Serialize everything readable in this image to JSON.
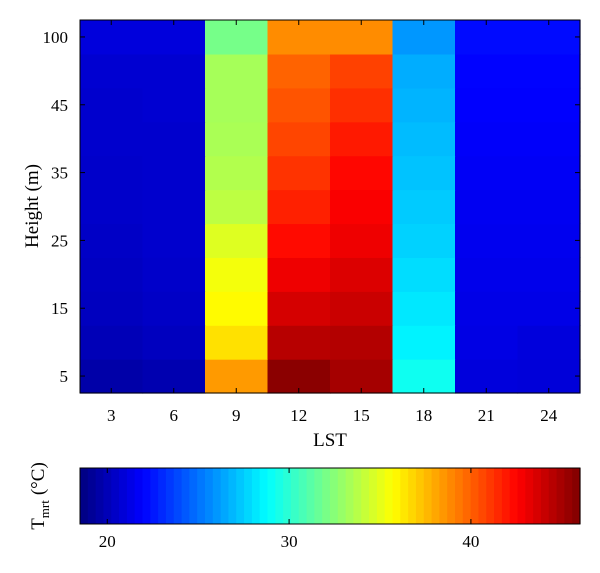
{
  "chart_data": {
    "type": "heatmap",
    "title": "",
    "xlabel": "LST",
    "ylabel": "Height (m)",
    "x": [
      3,
      6,
      9,
      12,
      15,
      18,
      21,
      24
    ],
    "x_tick_labels": [
      "3",
      "6",
      "9",
      "12",
      "15",
      "18",
      "21",
      "24"
    ],
    "y_tick_labels": [
      "5",
      "15",
      "25",
      "35",
      "45",
      "100"
    ],
    "y_tick_rows": [
      0,
      2,
      4,
      6,
      8,
      10
    ],
    "row_count": 11,
    "colorbar": {
      "label_main": "T",
      "label_sub": "mrt",
      "label_unit": "(°C)",
      "colormap": "jet",
      "range": [
        18.5,
        46.0
      ],
      "ticks": [
        20,
        30,
        40
      ],
      "tick_labels": [
        "20",
        "30",
        "40"
      ]
    },
    "values_by_row_from_bottom": [
      [
        19.6,
        19.8,
        38.4,
        45.7,
        45.0,
        29.2,
        21.0,
        20.9
      ],
      [
        20.0,
        20.2,
        36.5,
        44.5,
        44.6,
        28.5,
        21.2,
        21.0
      ],
      [
        20.2,
        20.4,
        35.8,
        43.7,
        44.0,
        28.2,
        21.3,
        21.3
      ],
      [
        20.3,
        20.5,
        35.4,
        43.0,
        43.5,
        27.9,
        21.4,
        21.4
      ],
      [
        20.4,
        20.6,
        34.8,
        42.3,
        43.0,
        27.6,
        21.5,
        21.5
      ],
      [
        20.5,
        20.6,
        33.9,
        41.7,
        42.7,
        27.4,
        21.6,
        21.6
      ],
      [
        20.5,
        20.6,
        33.6,
        41.2,
        42.4,
        27.2,
        21.7,
        21.7
      ],
      [
        20.6,
        20.6,
        33.4,
        40.7,
        41.9,
        27.0,
        21.8,
        21.8
      ],
      [
        20.6,
        20.7,
        33.3,
        40.3,
        41.3,
        26.8,
        21.9,
        21.9
      ],
      [
        20.7,
        20.7,
        33.3,
        39.9,
        40.8,
        26.6,
        22.0,
        22.0
      ],
      [
        21.0,
        21.0,
        32.0,
        38.8,
        38.8,
        26.0,
        22.2,
        22.2
      ]
    ]
  }
}
